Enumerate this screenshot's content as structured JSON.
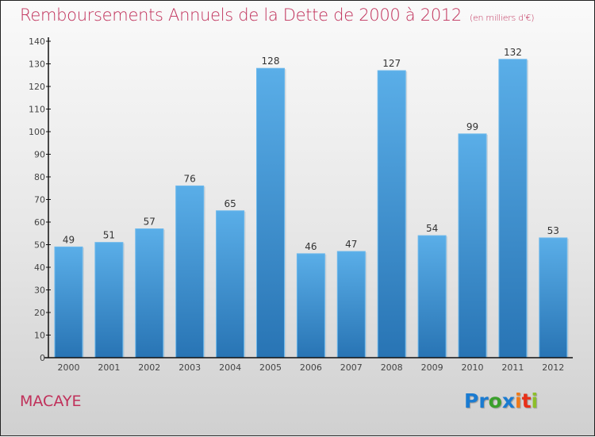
{
  "title": "Remboursements Annuels de la Dette de 2000 à 2012",
  "title_unit": "(en milliers d'€)",
  "city": "MACAYE",
  "logo": {
    "letters": [
      "P",
      "r",
      "o",
      "x",
      "i",
      "t",
      "i"
    ],
    "colors": [
      "#1a7bd1",
      "#1a7bd1",
      "#3aa02c",
      "#1a7bd1",
      "#f07a18",
      "#e83018",
      "#8dbf2a"
    ]
  },
  "colors": {
    "bar_top": "#5aaee8",
    "bar_bottom": "#2874b4",
    "accent": "#c0305a"
  },
  "chart_data": {
    "type": "bar",
    "title": "Remboursements Annuels de la Dette de 2000 à 2012 (en milliers d'€)",
    "xlabel": "",
    "ylabel": "",
    "categories": [
      "2000",
      "2001",
      "2002",
      "2003",
      "2004",
      "2005",
      "2006",
      "2007",
      "2008",
      "2009",
      "2010",
      "2011",
      "2012"
    ],
    "values": [
      49,
      51,
      57,
      76,
      65,
      128,
      46,
      47,
      127,
      54,
      99,
      132,
      53
    ],
    "ylim": [
      0,
      140
    ],
    "yticks": [
      0,
      10,
      20,
      30,
      40,
      50,
      60,
      70,
      80,
      90,
      100,
      110,
      120,
      130,
      140
    ],
    "grid": false,
    "legend": "none"
  }
}
